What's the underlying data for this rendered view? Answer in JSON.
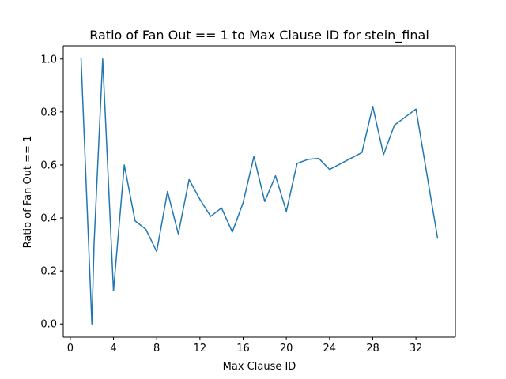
{
  "chart_data": {
    "type": "line",
    "title": "Ratio of Fan Out == 1 to Max Clause ID for stein_final",
    "xlabel": "Max Clause ID",
    "ylabel": "Ratio of Fan Out == 1",
    "xlim": [
      -0.65,
      35.65
    ],
    "ylim": [
      -0.05,
      1.05
    ],
    "xticks": [
      0,
      4,
      8,
      12,
      16,
      20,
      24,
      28,
      32
    ],
    "yticks": [
      0.0,
      0.2,
      0.4,
      0.6,
      0.8,
      1.0
    ],
    "xtick_labels": [
      "0",
      "4",
      "8",
      "12",
      "16",
      "20",
      "24",
      "28",
      "32"
    ],
    "ytick_labels": [
      "0.0",
      "0.2",
      "0.4",
      "0.6",
      "0.8",
      "1.0"
    ],
    "grid": false,
    "series": [
      {
        "color": "#1f77b4",
        "x": [
          1,
          2,
          2.2,
          3,
          4,
          5,
          6,
          7,
          8,
          9,
          10,
          11,
          12,
          13,
          14,
          15,
          16,
          17,
          18,
          19,
          20,
          21,
          22,
          23,
          24,
          27,
          28,
          29,
          30,
          32,
          34
        ],
        "y": [
          1.0,
          0.0,
          0.3,
          1.0,
          0.125,
          0.6,
          0.389,
          0.357,
          0.273,
          0.5,
          0.34,
          0.545,
          0.47,
          0.406,
          0.438,
          0.347,
          0.458,
          0.632,
          0.462,
          0.559,
          0.425,
          0.606,
          0.621,
          0.625,
          0.583,
          0.647,
          0.821,
          0.639,
          0.75,
          0.811,
          0.324
        ]
      }
    ]
  }
}
